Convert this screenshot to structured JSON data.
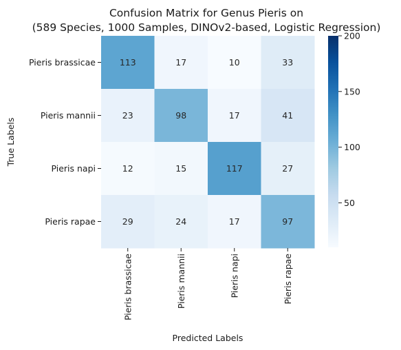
{
  "chart_data": {
    "type": "heatmap",
    "title_line1": "Confusion Matrix for Genus Pieris on",
    "title_line2": "(589 Species, 1000 Samples, DINOv2-based, Logistic Regression)",
    "xlabel": "Predicted Labels",
    "ylabel": "True Labels",
    "x_categories": [
      "Pieris brassicae",
      "Pieris mannii",
      "Pieris napi",
      "Pieris rapae"
    ],
    "y_categories": [
      "Pieris brassicae",
      "Pieris mannii",
      "Pieris napi",
      "Pieris rapae"
    ],
    "values": [
      [
        113,
        17,
        10,
        33
      ],
      [
        23,
        98,
        17,
        41
      ],
      [
        12,
        15,
        117,
        27
      ],
      [
        29,
        24,
        17,
        97
      ]
    ],
    "colorbar": {
      "min": 10,
      "max": 200,
      "ticks": [
        50,
        100,
        150,
        200
      ],
      "tick_labels": [
        "50",
        "100",
        "150",
        "200"
      ],
      "colormap": "Blues"
    }
  }
}
